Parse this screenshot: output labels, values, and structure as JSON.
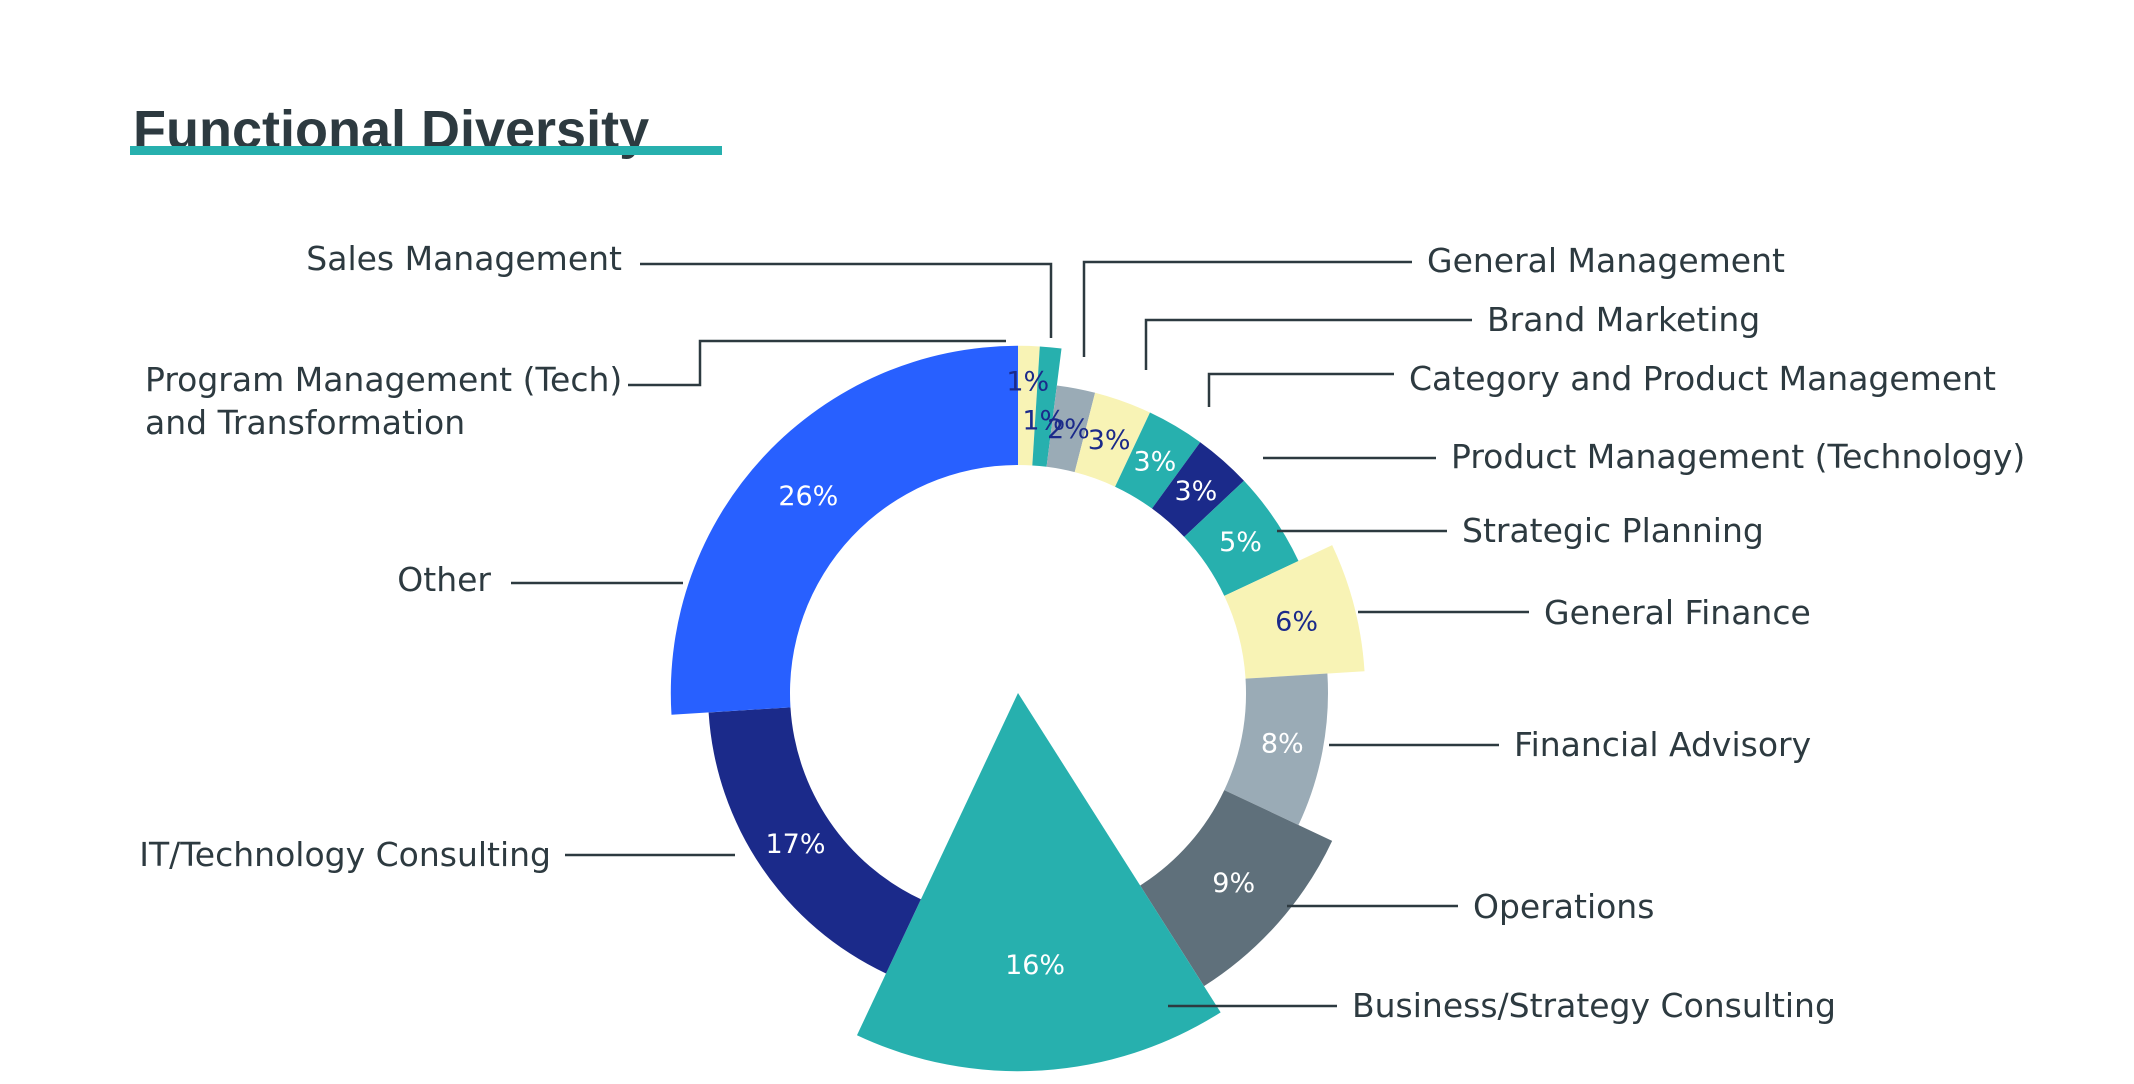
{
  "chart_data": {
    "type": "pie",
    "title": "Functional Diversity",
    "start_angle_deg": 0,
    "slices": [
      {
        "label": "Sales Management",
        "label_lines": [
          "Sales Management"
        ],
        "value": 1,
        "value_label": "1%",
        "color": "#f8f3b5",
        "text_color": "#1b2a8a",
        "radius_scale": 1.12
      },
      {
        "label": "General Management",
        "label_lines": [
          "General Management"
        ],
        "value": 1,
        "value_label": "1%",
        "color": "#27b0ae",
        "text_color": "#1b2a8a",
        "radius_scale": 1.12
      },
      {
        "label": "Brand Marketing",
        "label_lines": [
          "Brand Marketing"
        ],
        "value": 2,
        "value_label": "2%",
        "color": "#9aabb6",
        "text_color": "#1b2a8a",
        "radius_scale": 1.0
      },
      {
        "label": "Category and Product Management",
        "label_lines": [
          "Category and Product Management"
        ],
        "value": 3,
        "value_label": "3%",
        "color": "#f8f3b5",
        "text_color": "#1b2a8a",
        "radius_scale": 1.0
      },
      {
        "label": "Product Management (Technology)",
        "label_lines": [
          "Product Management (Technology)"
        ],
        "value": 3,
        "value_label": "3%",
        "color": "#27b0ae",
        "text_color": "#ffffff",
        "radius_scale": 1.0
      },
      {
        "label": "Strategic Planning",
        "label_lines": [
          "Strategic Planning"
        ],
        "value": 3,
        "value_label": "3%",
        "color": "#1b2a8a",
        "text_color": "#ffffff",
        "radius_scale": 1.0
      },
      {
        "label": "General Finance",
        "label_lines": [
          "General Finance"
        ],
        "value": 5,
        "value_label": "5%",
        "color": "#27b0ae",
        "text_color": "#ffffff",
        "radius_scale": 1.0
      },
      {
        "label": "Financial Advisory",
        "label_lines": [
          "Financial Advisory"
        ],
        "value": 6,
        "value_label": "6%",
        "color": "#f8f3b5",
        "text_color": "#1b2a8a",
        "radius_scale": 1.12
      },
      {
        "label": "Operations",
        "label_lines": [
          "Operations"
        ],
        "value": 8,
        "value_label": "8%",
        "color": "#9aabb6",
        "text_color": "#ffffff",
        "radius_scale": 1.0
      },
      {
        "label": "Business/Strategy Consulting",
        "label_lines": [
          "Business/Strategy Consulting"
        ],
        "value": 9,
        "value_label": "9%",
        "color": "#5f707b",
        "text_color": "#ffffff",
        "radius_scale": 1.12
      },
      {
        "label": "IT/Technology Consulting",
        "label_lines": [
          "IT/Technology Consulting"
        ],
        "value": 16,
        "value_label": "16%",
        "color": "#27b0ae",
        "text_color": "#ffffff",
        "radius_scale": 1.22,
        "full_wedge": true
      },
      {
        "label": "Other",
        "label_lines": [
          "Other"
        ],
        "value": 17,
        "value_label": "17%",
        "color": "#1b2a8a",
        "text_color": "#ffffff",
        "radius_scale": 1.0
      },
      {
        "label": "Program Management (Tech) and Transformation",
        "label_lines": [
          "Program Management (Tech)",
          "and Transformation"
        ],
        "value": 26,
        "value_label": "26%",
        "color": "#2860ff",
        "text_color": "#ffffff",
        "radius_scale": 1.12
      }
    ]
  }
}
